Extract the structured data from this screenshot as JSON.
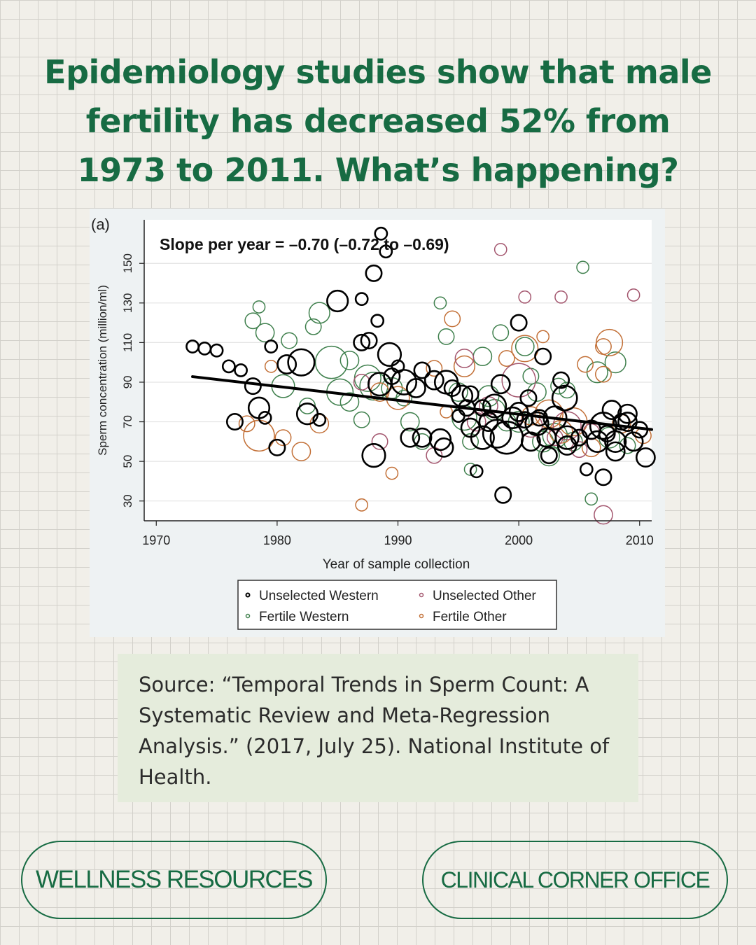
{
  "headline": {
    "line1": "Epidemiology studies show that male",
    "line2": "fertility has decreased 52% from",
    "line3": "1973 to 2011.  What’s happening?"
  },
  "chart_data": {
    "type": "scatter",
    "panel_label": "(a)",
    "title": "Slope per year = –0.70 (–0.72 to –0.69)",
    "xlabel": "Year of sample collection",
    "ylabel": "Sperm concentration (million/ml)",
    "xlim": [
      1969,
      2011
    ],
    "ylim": [
      20,
      172
    ],
    "xticks": [
      1970,
      1980,
      1990,
      2000,
      2010
    ],
    "yticks": [
      30,
      50,
      70,
      90,
      110,
      130,
      150
    ],
    "regression": {
      "x": [
        1973,
        2011
      ],
      "y": [
        92.8,
        66.1
      ],
      "color": "#000000"
    },
    "legend": {
      "position": "bottom",
      "entries": [
        {
          "label": "Unselected Western",
          "series": "unselected_western"
        },
        {
          "label": "Unselected Other",
          "series": "unselected_other"
        },
        {
          "label": "Fertile Western",
          "series": "fertile_western"
        },
        {
          "label": "Fertile Other",
          "series": "fertile_other"
        }
      ]
    },
    "series": [
      {
        "name": "Unselected Western",
        "key": "unselected_western",
        "color": "#000000",
        "points": [
          [
            1973,
            108,
            1
          ],
          [
            1974,
            107,
            1
          ],
          [
            1975,
            106,
            1
          ],
          [
            1976,
            98,
            1
          ],
          [
            1977,
            96,
            1
          ],
          [
            1976.5,
            70,
            2
          ],
          [
            1978,
            88,
            2
          ],
          [
            1978.5,
            77,
            4
          ],
          [
            1979,
            72,
            1
          ],
          [
            1979.5,
            108,
            1
          ],
          [
            1980,
            57,
            2
          ],
          [
            1980.8,
            99,
            3
          ],
          [
            1982,
            100,
            7
          ],
          [
            1982.5,
            74,
            4
          ],
          [
            1983.5,
            71,
            1
          ],
          [
            1985,
            131,
            4
          ],
          [
            1987,
            132,
            1
          ],
          [
            1987,
            110,
            2
          ],
          [
            1987.6,
            111,
            2
          ],
          [
            1988,
            145,
            2
          ],
          [
            1988.3,
            121,
            1
          ],
          [
            1988.5,
            89,
            5
          ],
          [
            1988,
            53,
            5
          ],
          [
            1988.6,
            165,
            1
          ],
          [
            1989,
            156,
            1
          ],
          [
            1989.3,
            104,
            5
          ],
          [
            1989.5,
            93,
            2
          ],
          [
            1990,
            98,
            1
          ],
          [
            1990.5,
            90,
            6
          ],
          [
            1991,
            62,
            3
          ],
          [
            1991.5,
            87,
            3
          ],
          [
            1992,
            96,
            2
          ],
          [
            1992,
            62,
            3
          ],
          [
            1993,
            91,
            3
          ],
          [
            1993.5,
            61,
            4
          ],
          [
            1993.8,
            57,
            3
          ],
          [
            1994,
            90,
            5
          ],
          [
            1994.5,
            87,
            2
          ],
          [
            1995,
            73,
            1
          ],
          [
            1995.3,
            83,
            4
          ],
          [
            1995.7,
            77,
            2
          ],
          [
            1996,
            84,
            2
          ],
          [
            1996,
            67,
            3
          ],
          [
            1996.5,
            45,
            1
          ],
          [
            1997,
            77,
            2
          ],
          [
            1997,
            62,
            5
          ],
          [
            1997.5,
            70,
            3
          ],
          [
            1998,
            78,
            5
          ],
          [
            1998.2,
            64,
            8
          ],
          [
            1998.5,
            89,
            3
          ],
          [
            1998.7,
            33,
            2
          ],
          [
            1999,
            62,
            11
          ],
          [
            1999.5,
            72,
            4
          ],
          [
            2000,
            120,
            2
          ],
          [
            2000,
            75,
            3
          ],
          [
            2000.5,
            71,
            2
          ],
          [
            2000.8,
            82,
            2
          ],
          [
            2001,
            60,
            3
          ],
          [
            2001.5,
            69,
            5
          ],
          [
            2001.7,
            72,
            2
          ],
          [
            2002,
            103,
            2
          ],
          [
            2002.3,
            62,
            3
          ],
          [
            2002.5,
            53,
            2
          ],
          [
            2003,
            72,
            5
          ],
          [
            2003.5,
            91,
            2
          ],
          [
            2003.8,
            82,
            6
          ],
          [
            2004,
            62,
            5
          ],
          [
            2004,
            58,
            3
          ],
          [
            2005,
            62,
            2
          ],
          [
            2005.6,
            46,
            1
          ],
          [
            2006,
            66,
            3
          ],
          [
            2006.5,
            60,
            4
          ],
          [
            2007,
            68,
            7
          ],
          [
            2007,
            42,
            2
          ],
          [
            2007.3,
            64,
            2
          ],
          [
            2007.7,
            76,
            3
          ],
          [
            2008,
            55,
            3
          ],
          [
            2008,
            60,
            4
          ],
          [
            2008.5,
            70,
            2
          ],
          [
            2009,
            74,
            3
          ],
          [
            2009,
            70,
            3
          ],
          [
            2009.5,
            60,
            3
          ],
          [
            2010,
            66,
            2
          ],
          [
            2010.5,
            52,
            3
          ]
        ]
      },
      {
        "name": "Unselected Other",
        "key": "unselected_other",
        "color": "#a3566e",
        "points": [
          [
            1987,
            90,
            2
          ],
          [
            1988.5,
            60,
            2
          ],
          [
            1993,
            53,
            2
          ],
          [
            1995.5,
            102,
            3
          ],
          [
            1996.5,
            70,
            3
          ],
          [
            1997.5,
            78,
            3
          ],
          [
            1998.5,
            157,
            1
          ],
          [
            2000,
            91,
            12
          ],
          [
            2000.5,
            133,
            1
          ],
          [
            2001,
            68,
            5
          ],
          [
            2003.5,
            133,
            1
          ],
          [
            2004,
            68,
            8
          ],
          [
            2005,
            56,
            2
          ],
          [
            2006,
            65,
            2
          ],
          [
            2007,
            23,
            3
          ],
          [
            2009.5,
            134,
            1
          ],
          [
            2003,
            62,
            2
          ]
        ]
      },
      {
        "name": "Fertile Western",
        "key": "fertile_western",
        "color": "#3e7f4c",
        "points": [
          [
            1978,
            121,
            2
          ],
          [
            1978.5,
            128,
            1
          ],
          [
            1979,
            115,
            3
          ],
          [
            1980.5,
            88,
            5
          ],
          [
            1981,
            111,
            2
          ],
          [
            1982.5,
            78,
            2
          ],
          [
            1983,
            118,
            2
          ],
          [
            1983.5,
            125,
            4
          ],
          [
            1984.5,
            100,
            11
          ],
          [
            1985.2,
            85,
            7
          ],
          [
            1986,
            101,
            3
          ],
          [
            1986,
            80,
            3
          ],
          [
            1987,
            71,
            2
          ],
          [
            1987.5,
            92,
            7
          ],
          [
            1988,
            88,
            8
          ],
          [
            1989.5,
            87,
            4
          ],
          [
            1990.5,
            82,
            2
          ],
          [
            1991,
            70,
            3
          ],
          [
            1992,
            60,
            2
          ],
          [
            1993.5,
            130,
            1
          ],
          [
            1994,
            113,
            2
          ],
          [
            1995,
            85,
            3
          ],
          [
            1995.5,
            72,
            6
          ],
          [
            1996,
            60,
            2
          ],
          [
            1996,
            46,
            1
          ],
          [
            1997,
            103,
            3
          ],
          [
            1997.5,
            83,
            4
          ],
          [
            1998,
            76,
            4
          ],
          [
            1998.5,
            115,
            2
          ],
          [
            1999,
            70,
            3
          ],
          [
            2000,
            70,
            4
          ],
          [
            2000.5,
            108,
            3
          ],
          [
            2001,
            93,
            2
          ],
          [
            2001.5,
            85,
            3
          ],
          [
            2002,
            60,
            4
          ],
          [
            2002.5,
            53,
            4
          ],
          [
            2003,
            63,
            6
          ],
          [
            2003.3,
            88,
            2
          ],
          [
            2004,
            86,
            2
          ],
          [
            2004.5,
            60,
            3
          ],
          [
            2005.3,
            148,
            1
          ],
          [
            2006,
            31,
            1
          ],
          [
            2006.5,
            95,
            4
          ],
          [
            2007.5,
            62,
            4
          ],
          [
            2008,
            100,
            4
          ],
          [
            2009,
            58,
            2
          ]
        ]
      },
      {
        "name": "Fertile Other",
        "key": "fertile_other",
        "color": "#c26f36",
        "points": [
          [
            1977.5,
            69,
            2
          ],
          [
            1978.5,
            63,
            10
          ],
          [
            1979.5,
            98,
            1
          ],
          [
            1980.5,
            62,
            2
          ],
          [
            1982,
            55,
            3
          ],
          [
            1983.5,
            69,
            3
          ],
          [
            1987,
            28,
            1
          ],
          [
            1988.5,
            85,
            3
          ],
          [
            1989.5,
            44,
            1
          ],
          [
            1990,
            82,
            5
          ],
          [
            1993,
            97,
            2
          ],
          [
            1994,
            75,
            1
          ],
          [
            1994.5,
            122,
            2
          ],
          [
            1995.5,
            98,
            4
          ],
          [
            1999,
            102,
            2
          ],
          [
            2000.5,
            107,
            7
          ],
          [
            2001,
            73,
            3
          ],
          [
            2002,
            113,
            1
          ],
          [
            2002.5,
            74,
            8
          ],
          [
            2003.5,
            65,
            5
          ],
          [
            2004.5,
            70,
            8
          ],
          [
            2005.5,
            99,
            2
          ],
          [
            2006,
            57,
            3
          ],
          [
            2007,
            94,
            2
          ],
          [
            2007,
            108,
            2
          ],
          [
            2007.5,
            110,
            7
          ],
          [
            2008.5,
            69,
            3
          ],
          [
            2010.3,
            63,
            2
          ]
        ]
      }
    ]
  },
  "source": "Source: “Temporal Trends in Sperm Count: A Systematic Review and Meta-Regression Analysis.” (2017, July 25). National Institute of Health.",
  "buttons": {
    "left": "WELLNESS RESOURCES",
    "right": "CLINICAL CORNER OFFICE"
  },
  "colors": {
    "accent_green": "#176b43",
    "grid_bg": "#f1efe9",
    "chart_bg": "#eef2f3",
    "source_bg": "#e5ecdc"
  }
}
